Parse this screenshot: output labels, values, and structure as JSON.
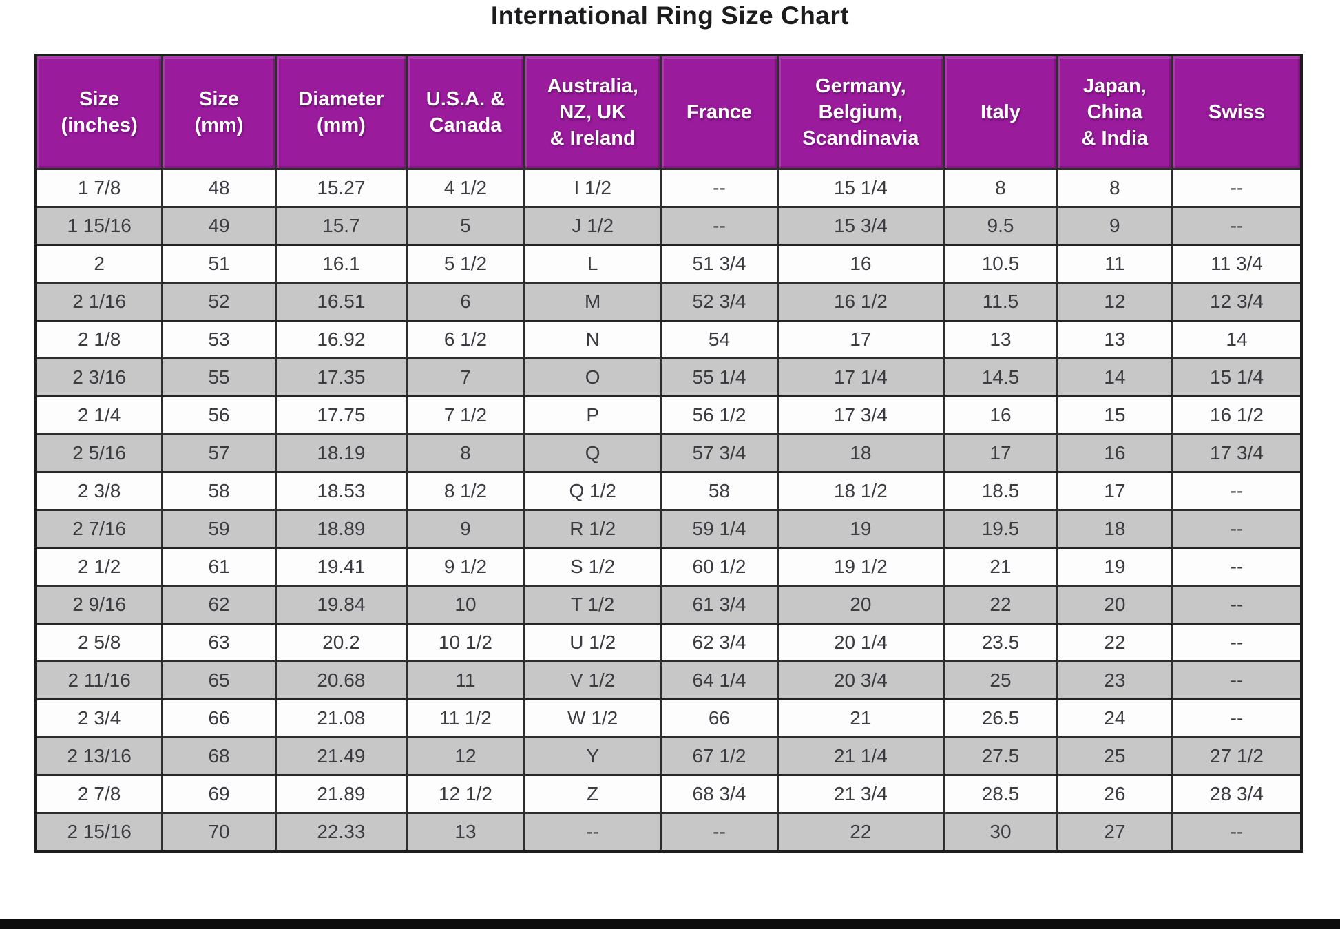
{
  "page": {
    "title": "International Ring Size Chart"
  },
  "colors": {
    "header_bg": "#9B1B9D",
    "header_text": "#FFFFFF",
    "row_bg": "#FDFDFD",
    "row_alt_bg": "#C7C7C7",
    "border": "#2E2E2E",
    "border_strong": "#1D1D1D",
    "footer_bar": "#0D0D0D"
  },
  "table": {
    "header_lines": [
      [
        "Size",
        "(inches)"
      ],
      [
        "Size",
        "(mm)"
      ],
      [
        "Diameter",
        "(mm)"
      ],
      [
        "U.S.A. &",
        "Canada"
      ],
      [
        "Australia,",
        "NZ, UK",
        "& Ireland"
      ],
      [
        "France"
      ],
      [
        "Germany,",
        "Belgium,",
        "Scandinavia"
      ],
      [
        "Italy"
      ],
      [
        "Japan,",
        "China",
        "& India"
      ],
      [
        "Swiss"
      ]
    ]
  },
  "chart_data": {
    "type": "table",
    "title": "International Ring Size Chart",
    "columns": [
      "Size (inches)",
      "Size (mm)",
      "Diameter (mm)",
      "U.S.A. & Canada",
      "Australia, NZ, UK & Ireland",
      "France",
      "Germany, Belgium, Scandinavia",
      "Italy",
      "Japan, China & India",
      "Swiss"
    ],
    "rows": [
      [
        "1 7/8",
        "48",
        "15.27",
        "4 1/2",
        "I 1/2",
        "--",
        "15 1/4",
        "8",
        "8",
        "--"
      ],
      [
        "1 15/16",
        "49",
        "15.7",
        "5",
        "J 1/2",
        "--",
        "15 3/4",
        "9.5",
        "9",
        "--"
      ],
      [
        "2",
        "51",
        "16.1",
        "5 1/2",
        "L",
        "51 3/4",
        "16",
        "10.5",
        "11",
        "11 3/4"
      ],
      [
        "2 1/16",
        "52",
        "16.51",
        "6",
        "M",
        "52 3/4",
        "16 1/2",
        "11.5",
        "12",
        "12 3/4"
      ],
      [
        "2 1/8",
        "53",
        "16.92",
        "6 1/2",
        "N",
        "54",
        "17",
        "13",
        "13",
        "14"
      ],
      [
        "2 3/16",
        "55",
        "17.35",
        "7",
        "O",
        "55 1/4",
        "17 1/4",
        "14.5",
        "14",
        "15 1/4"
      ],
      [
        "2 1/4",
        "56",
        "17.75",
        "7 1/2",
        "P",
        "56 1/2",
        "17 3/4",
        "16",
        "15",
        "16 1/2"
      ],
      [
        "2 5/16",
        "57",
        "18.19",
        "8",
        "Q",
        "57 3/4",
        "18",
        "17",
        "16",
        "17 3/4"
      ],
      [
        "2 3/8",
        "58",
        "18.53",
        "8 1/2",
        "Q 1/2",
        "58",
        "18 1/2",
        "18.5",
        "17",
        "--"
      ],
      [
        "2 7/16",
        "59",
        "18.89",
        "9",
        "R 1/2",
        "59 1/4",
        "19",
        "19.5",
        "18",
        "--"
      ],
      [
        "2 1/2",
        "61",
        "19.41",
        "9 1/2",
        "S 1/2",
        "60 1/2",
        "19 1/2",
        "21",
        "19",
        "--"
      ],
      [
        "2 9/16",
        "62",
        "19.84",
        "10",
        "T 1/2",
        "61 3/4",
        "20",
        "22",
        "20",
        "--"
      ],
      [
        "2 5/8",
        "63",
        "20.2",
        "10 1/2",
        "U 1/2",
        "62 3/4",
        "20 1/4",
        "23.5",
        "22",
        "--"
      ],
      [
        "2 11/16",
        "65",
        "20.68",
        "11",
        "V 1/2",
        "64 1/4",
        "20 3/4",
        "25",
        "23",
        "--"
      ],
      [
        "2 3/4",
        "66",
        "21.08",
        "11 1/2",
        "W 1/2",
        "66",
        "21",
        "26.5",
        "24",
        "--"
      ],
      [
        "2 13/16",
        "68",
        "21.49",
        "12",
        "Y",
        "67 1/2",
        "21 1/4",
        "27.5",
        "25",
        "27 1/2"
      ],
      [
        "2 7/8",
        "69",
        "21.89",
        "12 1/2",
        "Z",
        "68 3/4",
        "21 3/4",
        "28.5",
        "26",
        "28 3/4"
      ],
      [
        "2 15/16",
        "70",
        "22.33",
        "13",
        "--",
        "--",
        "22",
        "30",
        "27",
        "--"
      ]
    ]
  }
}
